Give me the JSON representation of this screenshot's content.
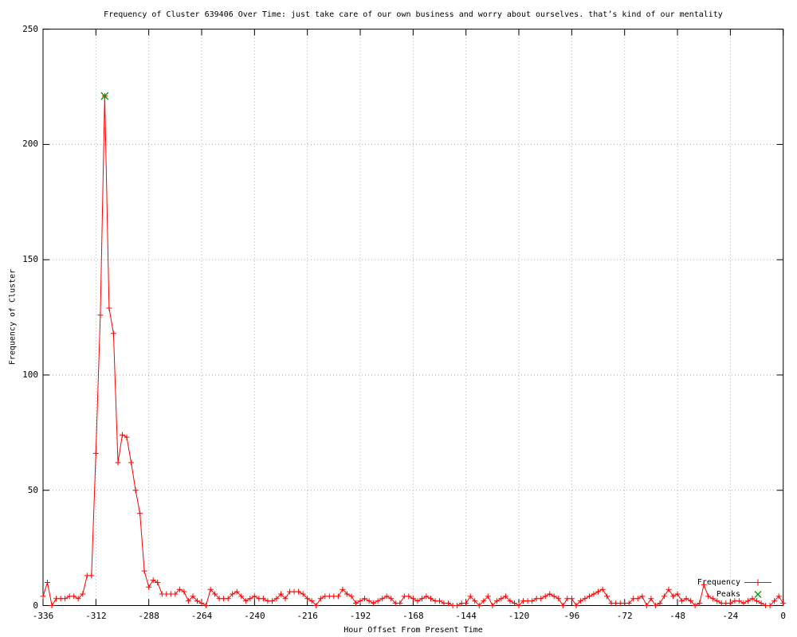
{
  "title": "Frequency of Cluster 639406 Over Time: just take care of our own business and worry about ourselves. that’s kind of our mentality",
  "axes": {
    "xlabel": "Hour Offset From Present Time",
    "ylabel": "Frequency of Cluster",
    "x_ticks": [
      -336,
      -312,
      -288,
      -264,
      -240,
      -216,
      -192,
      -168,
      -144,
      -120,
      -96,
      -72,
      -48,
      -24,
      0
    ],
    "y_ticks": [
      0,
      50,
      100,
      150,
      200,
      250
    ],
    "xlim": [
      -336,
      0
    ],
    "ylim": [
      0,
      250
    ],
    "grid": "dotted"
  },
  "legend": {
    "position": "bottom-right",
    "items": [
      {
        "label": "Frequency",
        "marker": "plus-line"
      },
      {
        "label": "Peaks",
        "marker": "cross"
      }
    ]
  },
  "colors": {
    "frequency_line": "#ff0000",
    "peak_marker": "#00a000",
    "grid_line": "#aaaaaa",
    "text": "#000000",
    "background": "#ffffff"
  },
  "chart_data": {
    "type": "line",
    "title": "Frequency of Cluster 639406 Over Time",
    "xlabel": "Hour Offset From Present Time",
    "ylabel": "Frequency of Cluster",
    "xlim": [
      -336,
      0
    ],
    "ylim": [
      0,
      250
    ],
    "x": [
      -336,
      -334,
      -332,
      -330,
      -328,
      -326,
      -324,
      -322,
      -320,
      -318,
      -316,
      -314,
      -312,
      -310,
      -308,
      -306,
      -304,
      -302,
      -300,
      -298,
      -296,
      -294,
      -292,
      -290,
      -288,
      -286,
      -284,
      -282,
      -280,
      -278,
      -276,
      -274,
      -272,
      -270,
      -268,
      -266,
      -264,
      -262,
      -260,
      -258,
      -256,
      -254,
      -252,
      -250,
      -248,
      -246,
      -244,
      -242,
      -240,
      -238,
      -236,
      -234,
      -232,
      -230,
      -228,
      -226,
      -224,
      -222,
      -220,
      -218,
      -216,
      -214,
      -212,
      -210,
      -208,
      -206,
      -204,
      -202,
      -200,
      -198,
      -196,
      -194,
      -192,
      -190,
      -188,
      -186,
      -184,
      -182,
      -180,
      -178,
      -176,
      -174,
      -172,
      -170,
      -168,
      -166,
      -164,
      -162,
      -160,
      -158,
      -156,
      -154,
      -152,
      -150,
      -148,
      -146,
      -144,
      -142,
      -140,
      -138,
      -136,
      -134,
      -132,
      -130,
      -128,
      -126,
      -124,
      -122,
      -120,
      -118,
      -116,
      -114,
      -112,
      -110,
      -108,
      -106,
      -104,
      -102,
      -100,
      -98,
      -96,
      -94,
      -92,
      -90,
      -88,
      -86,
      -84,
      -82,
      -80,
      -78,
      -76,
      -74,
      -72,
      -70,
      -68,
      -66,
      -64,
      -62,
      -60,
      -58,
      -56,
      -54,
      -52,
      -50,
      -48,
      -46,
      -44,
      -42,
      -40,
      -38,
      -36,
      -34,
      -32,
      -30,
      -28,
      -26,
      -24,
      -22,
      -20,
      -18,
      -16,
      -14,
      -12,
      -10,
      -8,
      -6,
      -4,
      -2,
      0
    ],
    "series": [
      {
        "name": "Frequency",
        "values": [
          4,
          10,
          0,
          3,
          3,
          3,
          4,
          4,
          3,
          5,
          13,
          13,
          66,
          126,
          221,
          129,
          118,
          62,
          74,
          73,
          62,
          50,
          40,
          15,
          8,
          11,
          10,
          5,
          5,
          5,
          5,
          7,
          6,
          2,
          4,
          2,
          1,
          0,
          7,
          5,
          3,
          3,
          3,
          5,
          6,
          4,
          2,
          3,
          4,
          3,
          3,
          2,
          2,
          3,
          5,
          3,
          6,
          6,
          6,
          5,
          3,
          2,
          0,
          3,
          4,
          4,
          4,
          4,
          7,
          5,
          4,
          1,
          2,
          3,
          2,
          1,
          2,
          3,
          4,
          3,
          1,
          1,
          4,
          4,
          3,
          2,
          3,
          4,
          3,
          2,
          2,
          1,
          1,
          0,
          0,
          1,
          1,
          4,
          2,
          0,
          2,
          4,
          0,
          2,
          3,
          4,
          2,
          1,
          0,
          2,
          2,
          2,
          3,
          3,
          4,
          5,
          4,
          3,
          0,
          3,
          3,
          0,
          2,
          3,
          4,
          5,
          6,
          7,
          4,
          1,
          1,
          1,
          1,
          1,
          3,
          3,
          4,
          0,
          3,
          0,
          1,
          4,
          7,
          4,
          5,
          2,
          3,
          2,
          0,
          1,
          9,
          4,
          3,
          2,
          1,
          1,
          1,
          2,
          2,
          1,
          2,
          3,
          2,
          1,
          0,
          0,
          2,
          4,
          1
        ]
      },
      {
        "name": "Peaks",
        "points": [
          {
            "x": -308,
            "y": 221
          }
        ]
      }
    ]
  }
}
